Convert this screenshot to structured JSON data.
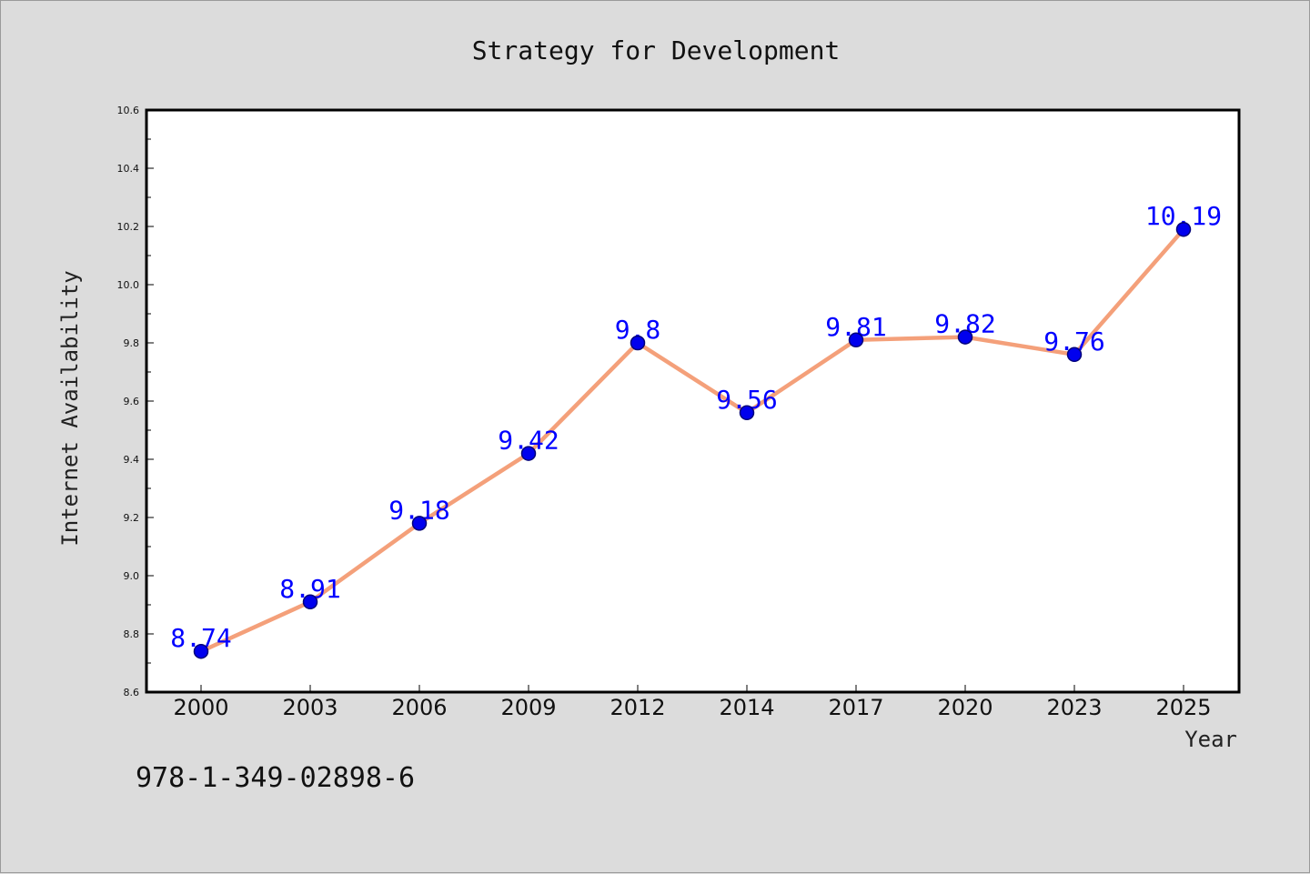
{
  "chart_data": {
    "type": "line",
    "title": "Strategy for Development",
    "xlabel": "Year",
    "ylabel": "Internet Availability",
    "categories": [
      "2000",
      "2003",
      "2006",
      "2009",
      "2012",
      "2014",
      "2017",
      "2020",
      "2023",
      "2025"
    ],
    "series": [
      {
        "values": [
          8.74,
          8.91,
          9.18,
          9.42,
          9.8,
          9.56,
          9.81,
          9.82,
          9.76,
          10.19
        ]
      }
    ],
    "data_labels": [
      "8.74",
      "8.91",
      "9.18",
      "9.42",
      "9.8",
      "9.56",
      "9.81",
      "9.82",
      "9.76",
      "10.19"
    ],
    "ylim": [
      8.6,
      10.6
    ],
    "yticks": [
      "8.6",
      "8.8",
      "9.0",
      "9.2",
      "9.4",
      "9.6",
      "9.8",
      "10.0",
      "10.2",
      "10.4",
      "10.6"
    ],
    "grid": false,
    "colors": {
      "line": "#f4a07a",
      "marker": "#0000ee",
      "marker_edge": "#00007a",
      "data_label": "#0000ff",
      "background": "#dcdcdc",
      "plot_background": "#ffffff"
    }
  },
  "footer": {
    "isbn": "978-1-349-02898-6"
  }
}
